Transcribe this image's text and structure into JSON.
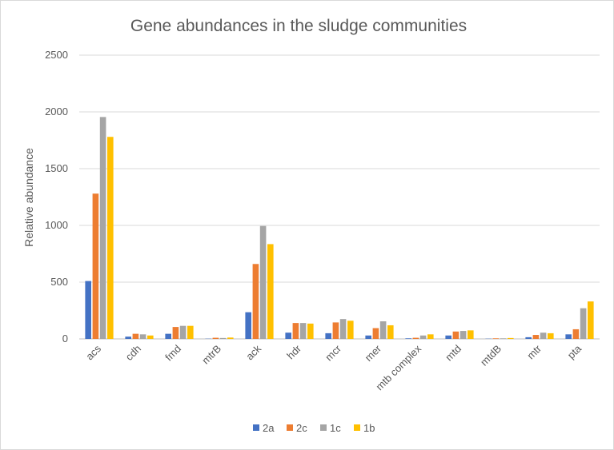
{
  "chart_data": {
    "type": "bar",
    "title": "Gene abundances in the sludge communities",
    "xlabel": "",
    "ylabel": "Relative abundance",
    "ylim": [
      0,
      2500
    ],
    "yticks": [
      0,
      500,
      1000,
      1500,
      2000,
      2500
    ],
    "grid": true,
    "legend": "bottom",
    "categories": [
      "acs",
      "cdh",
      "fmd",
      "mtrB",
      "ack",
      "hdr",
      "mcr",
      "mer",
      "mtb complex",
      "mtd",
      "mtdB",
      "mtr",
      "pta"
    ],
    "series": [
      {
        "name": "2a",
        "color": "#4472C4",
        "values": [
          510,
          20,
          45,
          2,
          235,
          55,
          50,
          30,
          5,
          30,
          2,
          15,
          40
        ]
      },
      {
        "name": "2c",
        "color": "#ED7D31",
        "values": [
          1280,
          45,
          105,
          10,
          660,
          140,
          145,
          95,
          10,
          65,
          5,
          35,
          85
        ]
      },
      {
        "name": "1c",
        "color": "#A5A5A5",
        "values": [
          1955,
          40,
          115,
          8,
          995,
          140,
          175,
          155,
          30,
          70,
          5,
          55,
          270
        ]
      },
      {
        "name": "1b",
        "color": "#FFC000",
        "values": [
          1780,
          30,
          115,
          12,
          835,
          135,
          160,
          120,
          40,
          75,
          8,
          50,
          330
        ]
      }
    ]
  }
}
